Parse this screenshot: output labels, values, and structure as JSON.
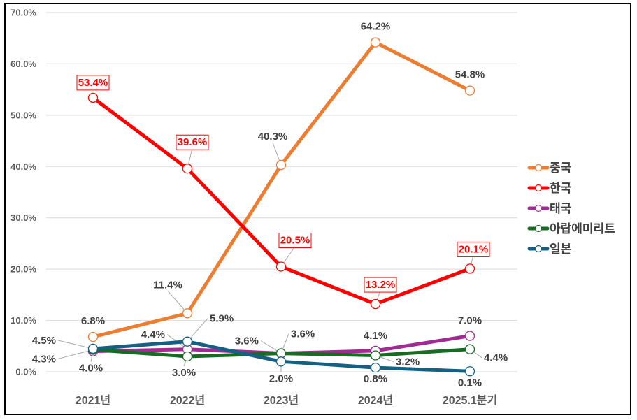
{
  "chart_data": {
    "type": "line",
    "title": "",
    "xlabel": "",
    "ylabel": "",
    "ylim": [
      0,
      70
    ],
    "yticks": [
      "0.0%",
      "10.0%",
      "20.0%",
      "30.0%",
      "40.0%",
      "50.0%",
      "60.0%",
      "70.0%"
    ],
    "ytick_values": [
      0,
      10,
      20,
      30,
      40,
      50,
      60,
      70
    ],
    "grid": true,
    "legend_position": "right",
    "categories": [
      "2021년",
      "2022년",
      "2023년",
      "2024년",
      "2025.1분기"
    ],
    "series": [
      {
        "name": "중국",
        "color": "#ed7d31",
        "values": [
          6.8,
          11.4,
          40.3,
          64.2,
          54.8
        ],
        "labels": [
          "6.8%",
          "11.4%",
          "40.3%",
          "64.2%",
          "54.8%"
        ],
        "boxed": false
      },
      {
        "name": "한국",
        "color": "#ff0000",
        "values": [
          53.4,
          39.6,
          20.5,
          13.2,
          20.1
        ],
        "labels": [
          "53.4%",
          "39.6%",
          "20.5%",
          "13.2%",
          "20.1%"
        ],
        "boxed": true
      },
      {
        "name": "태국",
        "color": "#a02b93",
        "values": [
          4.0,
          4.4,
          3.6,
          4.1,
          7.0
        ],
        "labels": [
          "4.0%",
          "4.4%",
          "3.6%",
          "4.1%",
          "7.0%"
        ],
        "boxed": false
      },
      {
        "name": "아랍에미리트",
        "color": "#196b24",
        "values": [
          4.3,
          3.0,
          3.6,
          3.2,
          4.4
        ],
        "labels": [
          "4.3%",
          "3.0%",
          "3.6%",
          "3.2%",
          "4.4%"
        ],
        "boxed": false
      },
      {
        "name": "일본",
        "color": "#156082",
        "values": [
          4.5,
          5.9,
          2.0,
          0.8,
          0.1
        ],
        "labels": [
          "4.5%",
          "5.9%",
          "2.0%",
          "0.8%",
          "0.1%"
        ],
        "boxed": false
      }
    ]
  }
}
